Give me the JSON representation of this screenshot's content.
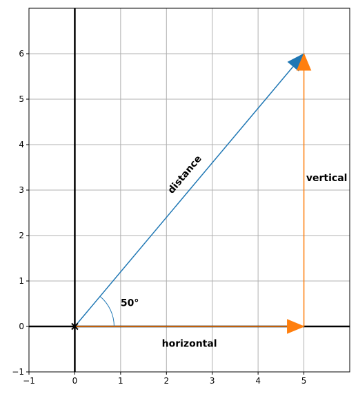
{
  "chart_data": {
    "type": "line",
    "xlim": [
      -1,
      6
    ],
    "ylim": [
      -1,
      7
    ],
    "x_ticks": [
      -1,
      0,
      1,
      2,
      3,
      4,
      5
    ],
    "y_ticks": [
      -1,
      0,
      1,
      2,
      3,
      4,
      5,
      6
    ],
    "x_tick_labels": [
      "−1",
      "0",
      "1",
      "2",
      "3",
      "4",
      "5"
    ],
    "y_tick_labels": [
      "−1",
      "0",
      "1",
      "2",
      "3",
      "4",
      "5",
      "6"
    ],
    "grid": true,
    "origin": {
      "x": 0,
      "y": 0,
      "marker": "x"
    },
    "vectors": [
      {
        "id": "distance",
        "from": [
          0,
          0
        ],
        "to": [
          5,
          6
        ],
        "color": "#1f77b4",
        "arrowhead": "end"
      },
      {
        "id": "horizontal",
        "from": [
          0,
          0
        ],
        "to": [
          5,
          0
        ],
        "color": "#ff7f0e",
        "arrowhead": "end"
      },
      {
        "id": "vertical",
        "from": [
          5,
          0
        ],
        "to": [
          5,
          6
        ],
        "color": "#ff7f0e",
        "arrowhead": "end"
      }
    ],
    "angle_arc": {
      "center": [
        0,
        0
      ],
      "theta_start_deg": 0,
      "theta_end_deg": 50,
      "color": "#1f77b4"
    },
    "annotations": [
      {
        "id": "distance-label",
        "text": "distance",
        "x": 2.45,
        "y": 3.3,
        "rotation_deg": -50
      },
      {
        "id": "vertical-label",
        "text": "vertical",
        "x": 5.05,
        "y": 3.2
      },
      {
        "id": "horizontal-label",
        "text": "horizontal",
        "x": 1.9,
        "y": -0.45
      },
      {
        "id": "angle-label",
        "text": "50°",
        "x": 1.0,
        "y": 0.45
      }
    ]
  }
}
